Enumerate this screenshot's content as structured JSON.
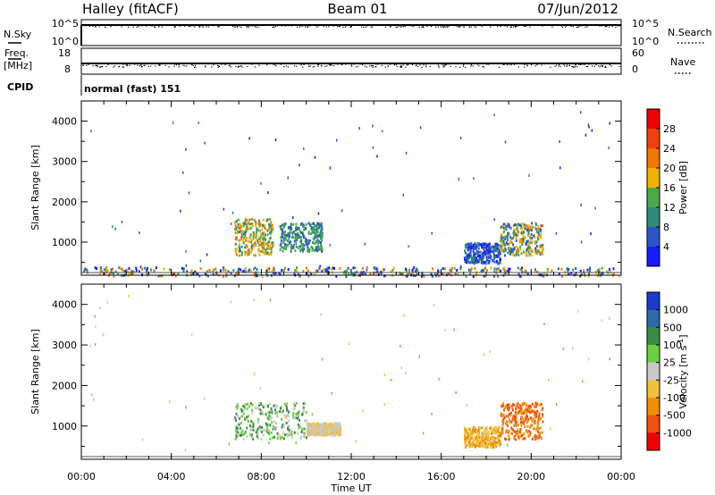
{
  "header": {
    "station": "Halley (fitACF)",
    "beam": "Beam 01",
    "date": "07/Jun/2012"
  },
  "top_panels": {
    "nsky": {
      "label": "N.Sky",
      "ticks": [
        "10^5",
        "10^0"
      ],
      "right_label": "N.Search",
      "right_ticks": [
        "10^5",
        "10^0"
      ]
    },
    "freq": {
      "label_1": "Freq.",
      "label_2": "[MHz]",
      "ticks": [
        "18",
        "8"
      ],
      "right_label": "Nave",
      "right_ticks": [
        "60",
        "0"
      ]
    },
    "cpid": {
      "label": "CPID",
      "value": "normal (fast) 151"
    }
  },
  "chart_data": [
    {
      "type": "heatmap",
      "name": "Power",
      "xlabel": "Time UT",
      "ylabel": "Slant Range [km]",
      "xlim": [
        0,
        24
      ],
      "ylim": [
        180,
        4500
      ],
      "x_ticks": [
        "00:00",
        "04:00",
        "08:00",
        "12:00",
        "16:00",
        "20:00",
        "00:00"
      ],
      "y_ticks": [
        1000,
        2000,
        3000,
        4000
      ],
      "colorbar": {
        "label": "Power [dB]",
        "ticks": [
          "4",
          "8",
          "12",
          "16",
          "20",
          "24",
          "28"
        ],
        "colors": [
          "#1a1aff",
          "#2e55c8",
          "#2f8a7a",
          "#4aaa4a",
          "#f0b400",
          "#f07800",
          "#f04010",
          "#ee0000"
        ]
      },
      "echo_regions": [
        {
          "t_start": 6.8,
          "t_end": 8.5,
          "r_min": 700,
          "r_max": 1600,
          "value": "12-24"
        },
        {
          "t_start": 8.8,
          "t_end": 10.7,
          "r_min": 800,
          "r_max": 1500,
          "value": "8-20"
        },
        {
          "t_start": 17.0,
          "t_end": 18.6,
          "r_min": 500,
          "r_max": 1000,
          "value": "4-12"
        },
        {
          "t_start": 18.6,
          "t_end": 20.5,
          "r_min": 700,
          "r_max": 1500,
          "value": "8-24"
        },
        {
          "t_start": 0.0,
          "t_end": 24.0,
          "r_min": 180,
          "r_max": 400,
          "value": "4-24"
        }
      ]
    },
    {
      "type": "heatmap",
      "name": "Velocity",
      "xlabel": "Time UT",
      "ylabel": "Slant Range [km]",
      "xlim": [
        0,
        24
      ],
      "ylim": [
        180,
        4500
      ],
      "x_ticks": [
        "00:00",
        "04:00",
        "08:00",
        "12:00",
        "16:00",
        "20:00",
        "00:00"
      ],
      "y_ticks": [
        1000,
        2000,
        3000,
        4000
      ],
      "colorbar": {
        "label": "Velocity [m s",
        "label_sup": "-1",
        "label_end": "]",
        "ticks": [
          "1000",
          "500",
          "100",
          "25",
          "-25",
          "-100",
          "-500",
          "-1000"
        ],
        "colors": [
          "#1a3acc",
          "#2e6aa8",
          "#3a8a4a",
          "#6ad040",
          "#c8c8c8",
          "#f0c040",
          "#f09000",
          "#f05010",
          "#ee0000"
        ]
      },
      "echo_regions": [
        {
          "t_start": 6.8,
          "t_end": 10.0,
          "r_min": 700,
          "r_max": 1600,
          "value": "25 to 500"
        },
        {
          "t_start": 10.0,
          "t_end": 11.5,
          "r_min": 800,
          "r_max": 1100,
          "value": "-25 to -100"
        },
        {
          "t_start": 17.0,
          "t_end": 18.6,
          "r_min": 500,
          "r_max": 1000,
          "value": "-25 to -100"
        },
        {
          "t_start": 18.6,
          "t_end": 20.5,
          "r_min": 700,
          "r_max": 1600,
          "value": "-100 to -500"
        }
      ]
    }
  ]
}
